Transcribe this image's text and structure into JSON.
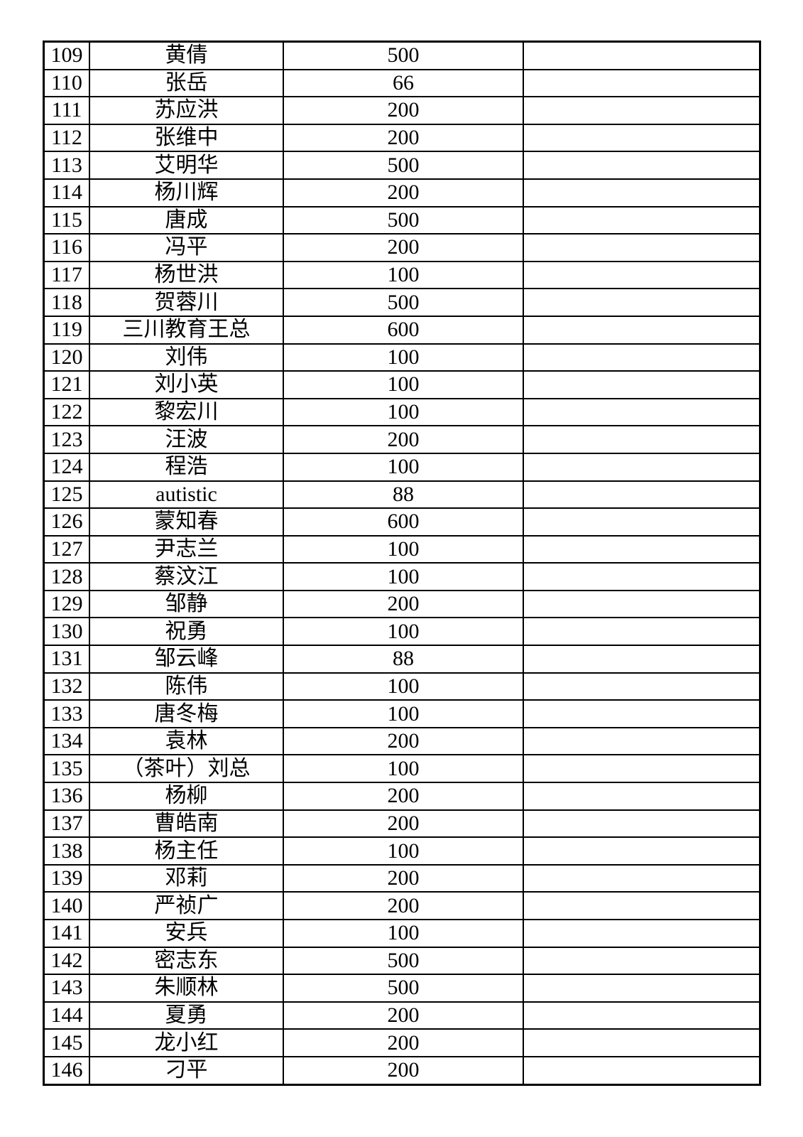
{
  "document": {
    "kind": "printed-spreadsheet-table-page",
    "background_color": "#ffffff",
    "border_color": "#000000",
    "text_color": "#000000"
  },
  "table": {
    "columns": [
      "row_number",
      "name",
      "amount",
      "blank"
    ],
    "rows": [
      {
        "no": "109",
        "name": "黄倩",
        "amount": "500",
        "blank": ""
      },
      {
        "no": "110",
        "name": "张岳",
        "amount": "66",
        "blank": ""
      },
      {
        "no": "111",
        "name": "苏应洪",
        "amount": "200",
        "blank": ""
      },
      {
        "no": "112",
        "name": "张维中",
        "amount": "200",
        "blank": ""
      },
      {
        "no": "113",
        "name": "艾明华",
        "amount": "500",
        "blank": ""
      },
      {
        "no": "114",
        "name": "杨川辉",
        "amount": "200",
        "blank": ""
      },
      {
        "no": "115",
        "name": "唐成",
        "amount": "500",
        "blank": ""
      },
      {
        "no": "116",
        "name": "冯平",
        "amount": "200",
        "blank": ""
      },
      {
        "no": "117",
        "name": "杨世洪",
        "amount": "100",
        "blank": ""
      },
      {
        "no": "118",
        "name": "贺蓉川",
        "amount": "500",
        "blank": ""
      },
      {
        "no": "119",
        "name": "三川教育王总",
        "amount": "600",
        "blank": ""
      },
      {
        "no": "120",
        "name": "刘伟",
        "amount": "100",
        "blank": ""
      },
      {
        "no": "121",
        "name": "刘小英",
        "amount": "100",
        "blank": ""
      },
      {
        "no": "122",
        "name": "黎宏川",
        "amount": "100",
        "blank": ""
      },
      {
        "no": "123",
        "name": "汪波",
        "amount": "200",
        "blank": ""
      },
      {
        "no": "124",
        "name": "程浩",
        "amount": "100",
        "blank": ""
      },
      {
        "no": "125",
        "name": "autistic",
        "amount": "88",
        "blank": ""
      },
      {
        "no": "126",
        "name": "蒙知春",
        "amount": "600",
        "blank": ""
      },
      {
        "no": "127",
        "name": "尹志兰",
        "amount": "100",
        "blank": ""
      },
      {
        "no": "128",
        "name": "蔡汶江",
        "amount": "100",
        "blank": ""
      },
      {
        "no": "129",
        "name": "邹静",
        "amount": "200",
        "blank": ""
      },
      {
        "no": "130",
        "name": "祝勇",
        "amount": "100",
        "blank": ""
      },
      {
        "no": "131",
        "name": "邹云峰",
        "amount": "88",
        "blank": ""
      },
      {
        "no": "132",
        "name": "陈伟",
        "amount": "100",
        "blank": ""
      },
      {
        "no": "133",
        "name": "唐冬梅",
        "amount": "100",
        "blank": ""
      },
      {
        "no": "134",
        "name": "袁林",
        "amount": "200",
        "blank": ""
      },
      {
        "no": "135",
        "name": "（茶叶）刘总",
        "amount": "100",
        "blank": ""
      },
      {
        "no": "136",
        "name": "杨柳",
        "amount": "200",
        "blank": ""
      },
      {
        "no": "137",
        "name": "曹皓南",
        "amount": "200",
        "blank": ""
      },
      {
        "no": "138",
        "name": "杨主任",
        "amount": "100",
        "blank": ""
      },
      {
        "no": "139",
        "name": "邓莉",
        "amount": "200",
        "blank": ""
      },
      {
        "no": "140",
        "name": "严祯广",
        "amount": "200",
        "blank": ""
      },
      {
        "no": "141",
        "name": "安兵",
        "amount": "100",
        "blank": ""
      },
      {
        "no": "142",
        "name": "密志东",
        "amount": "500",
        "blank": ""
      },
      {
        "no": "143",
        "name": "朱顺林",
        "amount": "500",
        "blank": ""
      },
      {
        "no": "144",
        "name": "夏勇",
        "amount": "200",
        "blank": ""
      },
      {
        "no": "145",
        "name": "龙小红",
        "amount": "200",
        "blank": ""
      },
      {
        "no": "146",
        "name": "刁平",
        "amount": "200",
        "blank": ""
      }
    ]
  }
}
